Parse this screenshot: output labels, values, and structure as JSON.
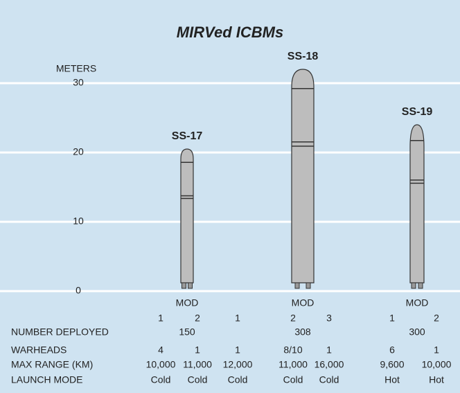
{
  "chart_data": {
    "type": "bar",
    "title": "MIRVed ICBMs",
    "y_label": "METERS",
    "categories": [
      "SS-17",
      "SS-18",
      "SS-19"
    ],
    "values": [
      20.5,
      32,
      24
    ],
    "color": "#bdbdbd",
    "ylim": [
      0,
      32
    ],
    "yticks": [
      0,
      10,
      20,
      30
    ],
    "grid": true
  },
  "table": {
    "mod_label": "MOD",
    "mods": [
      [
        1,
        2
      ],
      [
        1,
        2,
        3
      ],
      [
        1,
        2
      ]
    ],
    "row_labels": [
      "NUMBER DEPLOYED",
      "WARHEADS",
      "MAX RANGE (KM)",
      "LAUNCH MODE"
    ],
    "number_deployed": [
      150,
      308,
      300
    ],
    "warheads": [
      4,
      1,
      1,
      "8/10",
      1,
      6,
      1
    ],
    "max_range": [
      "10,000",
      "11,000",
      "12,000",
      "11,000",
      "16,000",
      "9,600",
      "10,000"
    ],
    "launch_mode": [
      "Cold",
      "Cold",
      "Cold",
      "Cold",
      "Cold",
      "Hot",
      "Hot"
    ]
  }
}
